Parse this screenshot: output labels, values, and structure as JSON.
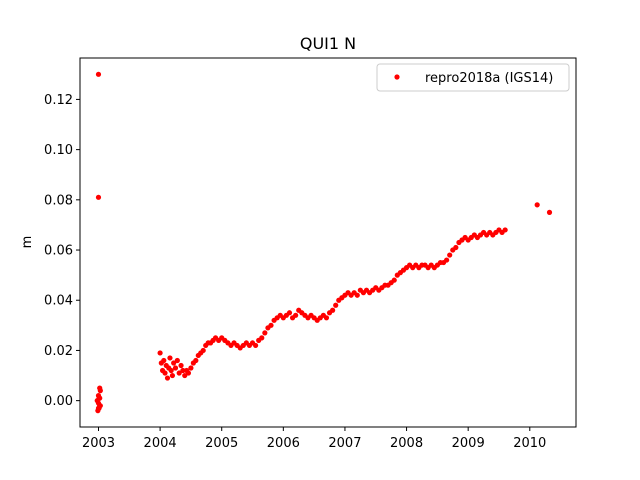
{
  "chart_data": {
    "type": "scatter",
    "title": "QUI1 N",
    "xlabel": "",
    "ylabel": "m",
    "xlim": [
      2002.7,
      2010.75
    ],
    "ylim": [
      -0.0105,
      0.1365
    ],
    "xticks": [
      2003,
      2004,
      2005,
      2006,
      2007,
      2008,
      2009,
      2010
    ],
    "xtick_labels": [
      "2003",
      "2004",
      "2005",
      "2006",
      "2007",
      "2008",
      "2009",
      "2010"
    ],
    "yticks": [
      0.0,
      0.02,
      0.04,
      0.06,
      0.08,
      0.1,
      0.12
    ],
    "ytick_labels": [
      "0.00",
      "0.02",
      "0.04",
      "0.06",
      "0.08",
      "0.10",
      "0.12"
    ],
    "grid": false,
    "legend": {
      "position": "upper-right"
    },
    "series": [
      {
        "name": "repro2018a (IGS14)",
        "color": "#ff0000",
        "marker": "circle",
        "points": [
          [
            2003.0,
            0.13
          ],
          [
            2003.0,
            0.081
          ],
          [
            2003.02,
            0.005
          ],
          [
            2003.03,
            0.004
          ],
          [
            2003.0,
            0.002
          ],
          [
            2003.01,
            0.001
          ],
          [
            2002.98,
            0.0
          ],
          [
            2003.0,
            -0.001
          ],
          [
            2003.02,
            -0.002
          ],
          [
            2003.01,
            -0.003
          ],
          [
            2002.99,
            -0.004
          ],
          [
            2003.03,
            -0.002
          ],
          [
            2003.0,
            -0.003
          ],
          [
            2003.02,
            0.001
          ],
          [
            2004.0,
            0.019
          ],
          [
            2004.02,
            0.015
          ],
          [
            2004.04,
            0.012
          ],
          [
            2004.06,
            0.016
          ],
          [
            2004.08,
            0.011
          ],
          [
            2004.1,
            0.014
          ],
          [
            2004.12,
            0.009
          ],
          [
            2004.14,
            0.013
          ],
          [
            2004.16,
            0.017
          ],
          [
            2004.18,
            0.012
          ],
          [
            2004.2,
            0.01
          ],
          [
            2004.22,
            0.015
          ],
          [
            2004.25,
            0.013
          ],
          [
            2004.28,
            0.016
          ],
          [
            2004.31,
            0.011
          ],
          [
            2004.34,
            0.014
          ],
          [
            2004.37,
            0.012
          ],
          [
            2004.4,
            0.01
          ],
          [
            2004.43,
            0.012
          ],
          [
            2004.46,
            0.011
          ],
          [
            2004.5,
            0.013
          ],
          [
            2004.54,
            0.015
          ],
          [
            2004.58,
            0.016
          ],
          [
            2004.62,
            0.018
          ],
          [
            2004.66,
            0.019
          ],
          [
            2004.7,
            0.02
          ],
          [
            2004.74,
            0.022
          ],
          [
            2004.78,
            0.023
          ],
          [
            2004.82,
            0.023
          ],
          [
            2004.86,
            0.024
          ],
          [
            2004.9,
            0.025
          ],
          [
            2004.95,
            0.024
          ],
          [
            2005.0,
            0.025
          ],
          [
            2005.05,
            0.024
          ],
          [
            2005.1,
            0.023
          ],
          [
            2005.15,
            0.022
          ],
          [
            2005.2,
            0.023
          ],
          [
            2005.25,
            0.022
          ],
          [
            2005.3,
            0.021
          ],
          [
            2005.35,
            0.022
          ],
          [
            2005.4,
            0.023
          ],
          [
            2005.45,
            0.022
          ],
          [
            2005.5,
            0.023
          ],
          [
            2005.55,
            0.022
          ],
          [
            2005.6,
            0.024
          ],
          [
            2005.65,
            0.025
          ],
          [
            2005.7,
            0.027
          ],
          [
            2005.75,
            0.029
          ],
          [
            2005.8,
            0.03
          ],
          [
            2005.85,
            0.032
          ],
          [
            2005.9,
            0.033
          ],
          [
            2005.95,
            0.034
          ],
          [
            2006.0,
            0.033
          ],
          [
            2006.05,
            0.034
          ],
          [
            2006.1,
            0.035
          ],
          [
            2006.15,
            0.033
          ],
          [
            2006.2,
            0.034
          ],
          [
            2006.25,
            0.036
          ],
          [
            2006.3,
            0.035
          ],
          [
            2006.35,
            0.034
          ],
          [
            2006.4,
            0.033
          ],
          [
            2006.45,
            0.034
          ],
          [
            2006.5,
            0.033
          ],
          [
            2006.55,
            0.032
          ],
          [
            2006.6,
            0.033
          ],
          [
            2006.65,
            0.034
          ],
          [
            2006.7,
            0.033
          ],
          [
            2006.75,
            0.035
          ],
          [
            2006.8,
            0.036
          ],
          [
            2006.85,
            0.038
          ],
          [
            2006.9,
            0.04
          ],
          [
            2006.95,
            0.041
          ],
          [
            2007.0,
            0.042
          ],
          [
            2007.05,
            0.043
          ],
          [
            2007.1,
            0.042
          ],
          [
            2007.15,
            0.043
          ],
          [
            2007.2,
            0.042
          ],
          [
            2007.25,
            0.044
          ],
          [
            2007.3,
            0.043
          ],
          [
            2007.35,
            0.044
          ],
          [
            2007.4,
            0.043
          ],
          [
            2007.45,
            0.044
          ],
          [
            2007.5,
            0.045
          ],
          [
            2007.55,
            0.044
          ],
          [
            2007.6,
            0.045
          ],
          [
            2007.65,
            0.046
          ],
          [
            2007.7,
            0.046
          ],
          [
            2007.75,
            0.047
          ],
          [
            2007.8,
            0.048
          ],
          [
            2007.85,
            0.05
          ],
          [
            2007.9,
            0.051
          ],
          [
            2007.95,
            0.052
          ],
          [
            2008.0,
            0.053
          ],
          [
            2008.05,
            0.054
          ],
          [
            2008.1,
            0.053
          ],
          [
            2008.15,
            0.054
          ],
          [
            2008.2,
            0.053
          ],
          [
            2008.25,
            0.054
          ],
          [
            2008.3,
            0.054
          ],
          [
            2008.35,
            0.053
          ],
          [
            2008.4,
            0.054
          ],
          [
            2008.45,
            0.053
          ],
          [
            2008.5,
            0.054
          ],
          [
            2008.55,
            0.055
          ],
          [
            2008.6,
            0.055
          ],
          [
            2008.65,
            0.056
          ],
          [
            2008.7,
            0.058
          ],
          [
            2008.75,
            0.06
          ],
          [
            2008.8,
            0.061
          ],
          [
            2008.85,
            0.063
          ],
          [
            2008.9,
            0.064
          ],
          [
            2008.95,
            0.065
          ],
          [
            2009.0,
            0.064
          ],
          [
            2009.05,
            0.065
          ],
          [
            2009.1,
            0.066
          ],
          [
            2009.15,
            0.065
          ],
          [
            2009.2,
            0.066
          ],
          [
            2009.25,
            0.067
          ],
          [
            2009.3,
            0.066
          ],
          [
            2009.35,
            0.067
          ],
          [
            2009.4,
            0.066
          ],
          [
            2009.45,
            0.067
          ],
          [
            2009.5,
            0.068
          ],
          [
            2009.55,
            0.067
          ],
          [
            2009.6,
            0.068
          ],
          [
            2010.12,
            0.078
          ],
          [
            2010.32,
            0.075
          ]
        ]
      }
    ]
  }
}
